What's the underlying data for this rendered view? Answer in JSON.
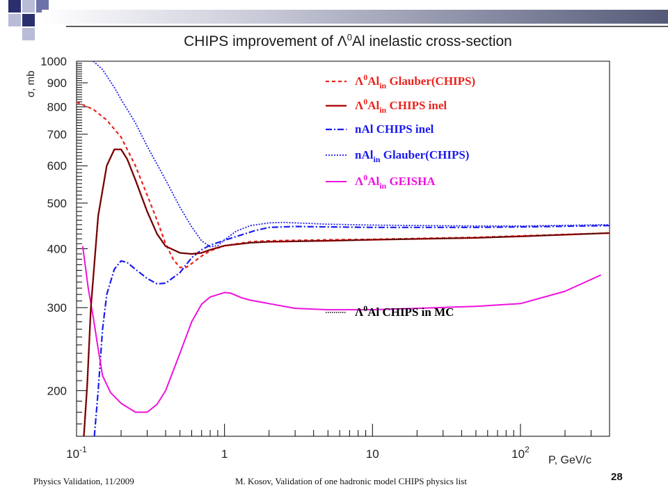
{
  "slide": {
    "title_prefix": "CHIPS improvement of ",
    "title_sym": "Λ",
    "title_sup": "0",
    "title_suffix": "Al inelastic cross-section",
    "footer_left": "Physics Validation, 11/2009",
    "footer_center": "M. Kosov,  Validation of one hadronic model CHIPS physics list",
    "page_number": "28"
  },
  "chart_data": {
    "type": "line",
    "title": "CHIPS improvement of Λ0Al inelastic cross-section",
    "xlabel": "P, GeV/c",
    "ylabel": "σ, mb",
    "xscale": "log",
    "yscale": "log",
    "xlim": [
      0.1,
      400
    ],
    "ylim": [
      160,
      1000
    ],
    "x_major_ticks": [
      {
        "value": 0.1,
        "base": "10",
        "exp": "-1"
      },
      {
        "value": 1,
        "base": "1",
        "exp": ""
      },
      {
        "value": 10,
        "base": "10",
        "exp": ""
      },
      {
        "value": 100,
        "base": "10",
        "exp": "2"
      }
    ],
    "y_ticks": [
      200,
      300,
      400,
      500,
      600,
      700,
      800,
      900,
      1000
    ],
    "grid": false,
    "legend_position": "top-right",
    "colors": {
      "red": "#e8231c",
      "dark_red": "#b01010",
      "blue": "#1a1aee",
      "magenta": "#ee11dd",
      "black": "#000000"
    },
    "series": [
      {
        "name": "Λ0Alin Glauber(CHIPS)",
        "legend": {
          "sym": "Λ",
          "sup": "0",
          "mid": "Al",
          "sub": "in",
          "tail": " Glauber(CHIPS)"
        },
        "color": "#e8231c",
        "dash": "5,4",
        "width": 2.2,
        "x": [
          0.1,
          0.13,
          0.16,
          0.2,
          0.25,
          0.3,
          0.35,
          0.4,
          0.45,
          0.5,
          0.55,
          0.6,
          0.7,
          0.8,
          1.0,
          1.5,
          2,
          5,
          10,
          50,
          100,
          400
        ],
        "y": [
          820,
          790,
          750,
          690,
          600,
          520,
          460,
          410,
          380,
          365,
          365,
          372,
          386,
          396,
          406,
          414,
          416,
          418,
          419,
          423,
          426,
          432
        ]
      },
      {
        "name": "Λ0Alin CHIPS inel",
        "legend": {
          "sym": "Λ",
          "sup": "0",
          "mid": "Al",
          "sub": "in",
          "tail": " CHIPS inel"
        },
        "color": "#b01010",
        "dash": "",
        "width": 2.4,
        "x": [
          0.112,
          0.118,
          0.125,
          0.14,
          0.16,
          0.18,
          0.2,
          0.22,
          0.25,
          0.3,
          0.35,
          0.4,
          0.5,
          0.6,
          0.7,
          0.8,
          1.0,
          1.5,
          2,
          5,
          10,
          50,
          100,
          400
        ],
        "y": [
          160,
          205,
          300,
          470,
          600,
          650,
          650,
          620,
          560,
          480,
          430,
          405,
          392,
          390,
          392,
          398,
          406,
          412,
          414,
          416,
          418,
          422,
          425,
          432
        ]
      },
      {
        "name": "nAl CHIPS inel",
        "legend": {
          "sym": "",
          "sup": "",
          "mid": "nAl",
          "sub": "",
          "tail": " CHIPS inel"
        },
        "color": "#1a1aee",
        "dash": "9,3,2,3",
        "width": 2.2,
        "x": [
          0.132,
          0.14,
          0.15,
          0.16,
          0.18,
          0.2,
          0.22,
          0.25,
          0.3,
          0.35,
          0.4,
          0.5,
          0.6,
          0.7,
          0.8,
          1.0,
          1.3,
          1.6,
          2,
          3,
          5,
          10,
          50,
          100,
          400
        ],
        "y": [
          160,
          200,
          270,
          320,
          362,
          377,
          374,
          362,
          346,
          337,
          338,
          356,
          383,
          398,
          407,
          417,
          428,
          437,
          444,
          446,
          445,
          444,
          444,
          445,
          448
        ]
      },
      {
        "name": "nAlin Glauber(CHIPS)",
        "legend": {
          "sym": "",
          "sup": "",
          "mid": "nAl",
          "sub": "in",
          "tail": " Glauber(CHIPS)"
        },
        "color": "#1a1aee",
        "dash": "2,2",
        "width": 1.8,
        "x": [
          0.13,
          0.15,
          0.18,
          0.2,
          0.25,
          0.3,
          0.4,
          0.5,
          0.6,
          0.7,
          0.8,
          0.9,
          1.0,
          1.2,
          1.5,
          2,
          2.5,
          3,
          5,
          10,
          50,
          100,
          400
        ],
        "y": [
          1000,
          960,
          880,
          830,
          740,
          660,
          560,
          490,
          445,
          416,
          404,
          406,
          418,
          436,
          448,
          454,
          455,
          454,
          451,
          449,
          447,
          447,
          450
        ]
      },
      {
        "name": "Λ0Alin GEISHA",
        "legend": {
          "sym": "Λ",
          "sup": "0",
          "mid": "Al",
          "sub": "in",
          "tail": " GEISHA"
        },
        "color": "#ee11dd",
        "dash": "",
        "width": 2.0,
        "x": [
          0.11,
          0.115,
          0.12,
          0.13,
          0.14,
          0.15,
          0.17,
          0.2,
          0.25,
          0.3,
          0.35,
          0.4,
          0.5,
          0.6,
          0.7,
          0.8,
          1.0,
          1.1,
          1.3,
          1.5,
          2,
          3,
          5,
          10,
          20,
          50,
          100,
          200,
          350
        ],
        "y": [
          405,
          365,
          330,
          285,
          245,
          215,
          198,
          188,
          180,
          180,
          187,
          200,
          240,
          280,
          305,
          316,
          323,
          322,
          315,
          311,
          306,
          299,
          297,
          297,
          299,
          302,
          306,
          325,
          352
        ]
      },
      {
        "name": "Λ0Al CHIPS in MC",
        "legend": {
          "sym": "Λ",
          "sup": "0",
          "mid": "Al",
          "sub": "",
          "tail": " CHIPS in MC"
        },
        "color": "#000000",
        "dash": "1.5,1.5",
        "width": 1.4,
        "x": [
          0.112,
          0.118,
          0.125,
          0.14,
          0.16,
          0.18,
          0.2,
          0.22,
          0.25,
          0.3,
          0.35,
          0.4,
          0.5,
          0.6,
          0.7,
          0.8,
          1.0,
          1.5,
          2,
          5,
          10,
          50,
          100,
          400
        ],
        "y": [
          160,
          205,
          300,
          470,
          600,
          650,
          650,
          620,
          560,
          480,
          430,
          405,
          392,
          390,
          392,
          398,
          406,
          412,
          414,
          416,
          418,
          422,
          425,
          432
        ]
      }
    ]
  }
}
